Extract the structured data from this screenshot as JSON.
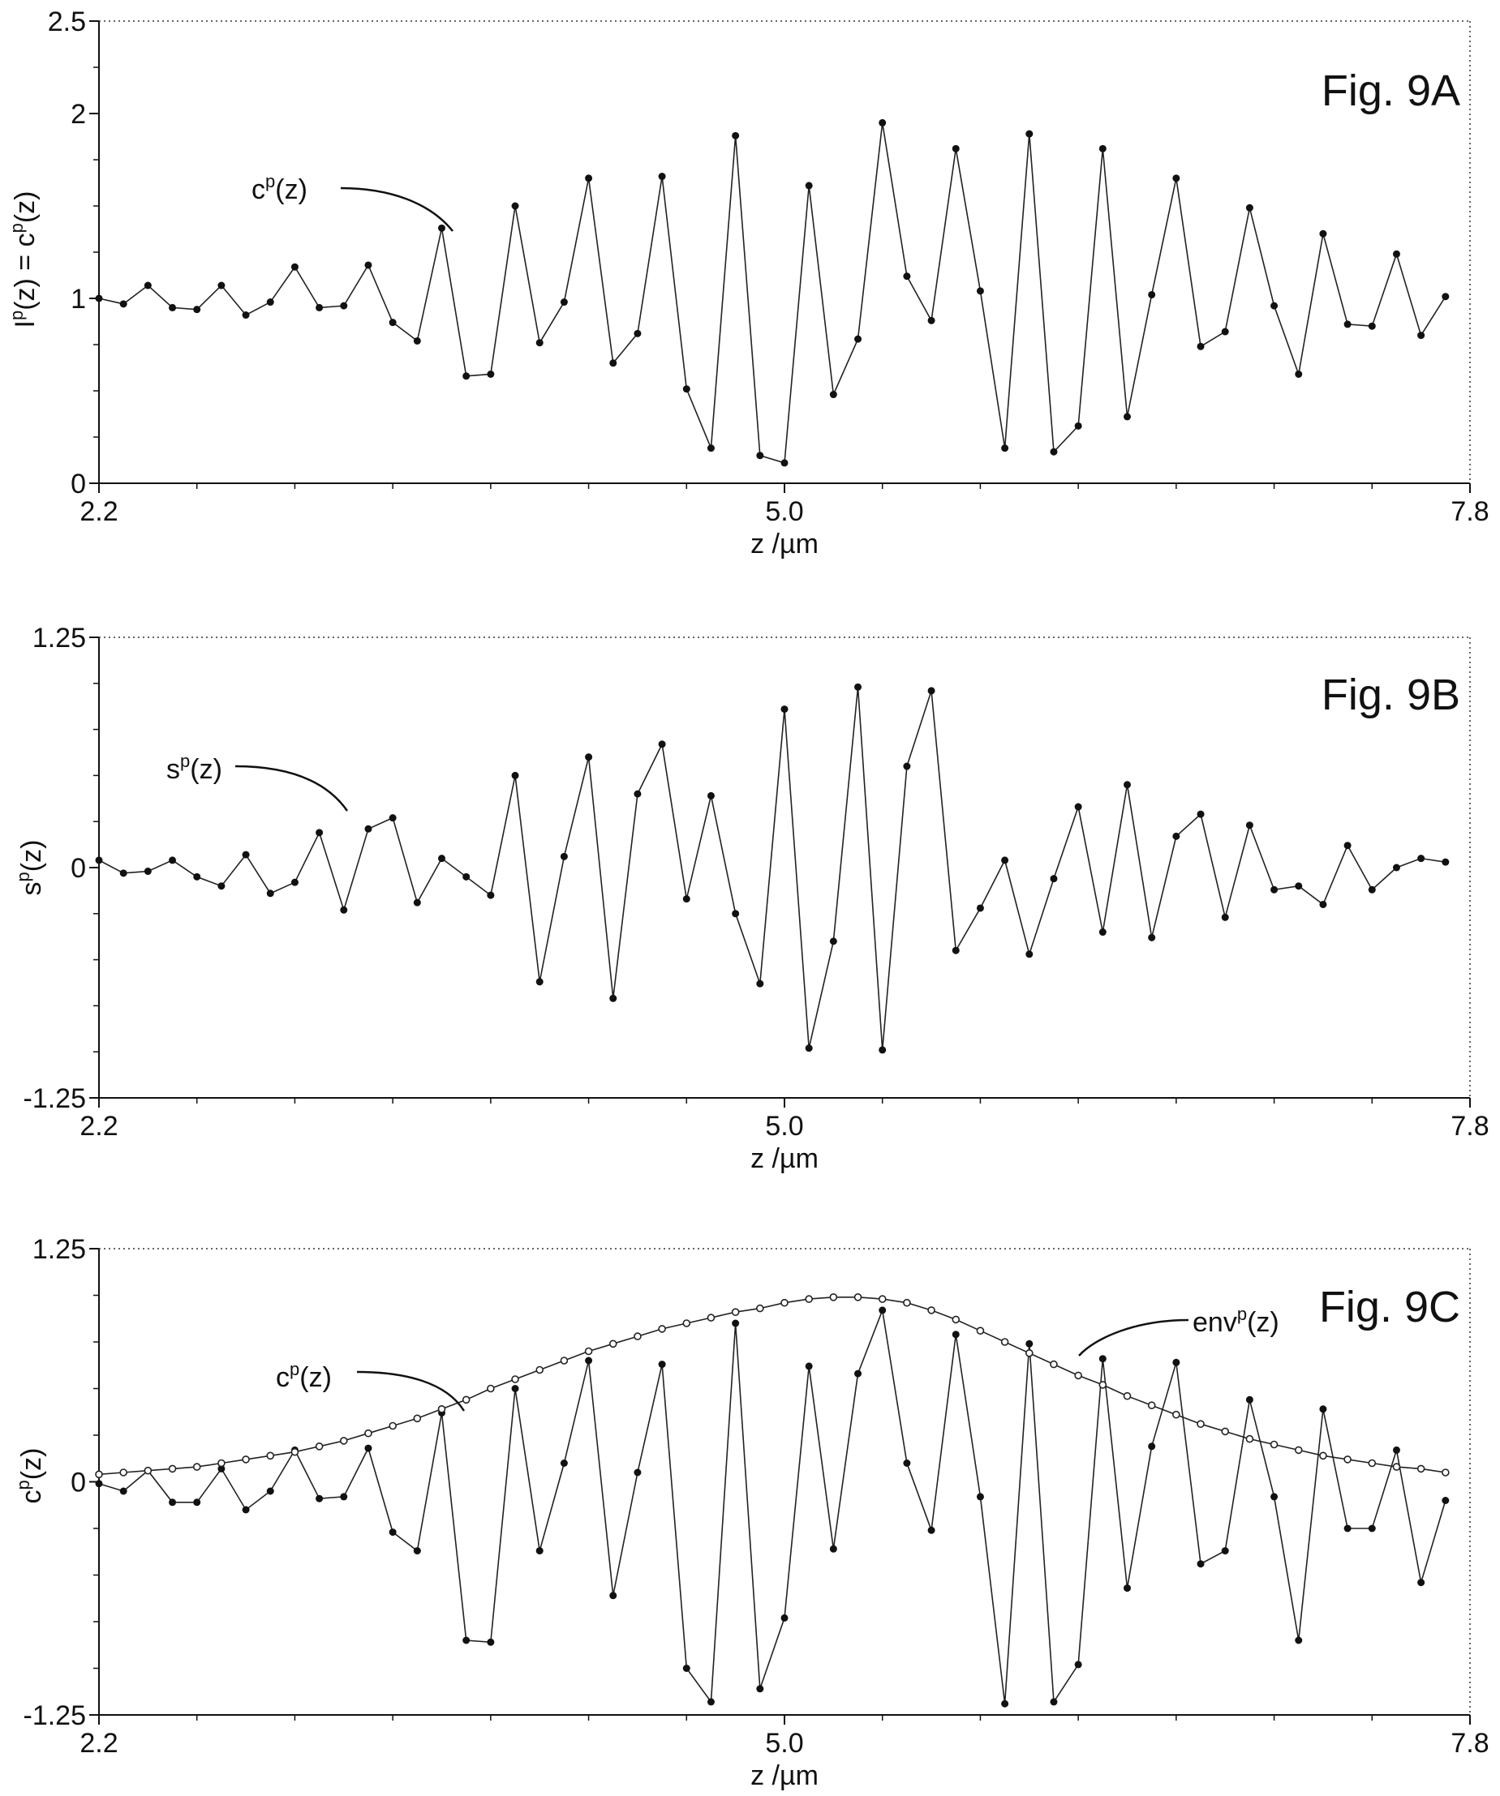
{
  "chart_data": [
    {
      "id": "9A",
      "type": "line",
      "title": "Fig. 9A",
      "xlabel": "z /µm",
      "ylabel_main": "I",
      "ylabel_sup": "p",
      "ylabel_mid": "(z) = c",
      "ylabel_sup2": "p",
      "ylabel_end": "(z)",
      "xlim": [
        2.2,
        7.8
      ],
      "ylim": [
        0,
        2.5
      ],
      "xticks": [
        2.2,
        5.0,
        7.8
      ],
      "xtick_labels": [
        "2.2",
        "5.0",
        "7.8"
      ],
      "yticks": [
        0,
        1,
        2,
        2.5
      ],
      "ytick_labels": [
        "0",
        "1",
        "2",
        "2.5"
      ],
      "annotations": [
        {
          "base": "c",
          "sup": "p",
          "rest": "(z)"
        }
      ],
      "series": [
        {
          "marker": "dot",
          "x": [
            2.2,
            2.3,
            2.4,
            2.5,
            2.6,
            2.7,
            2.8,
            2.9,
            3.0,
            3.1,
            3.2,
            3.3,
            3.4,
            3.5,
            3.6,
            3.7,
            3.8,
            3.9,
            4.0,
            4.1,
            4.2,
            4.3,
            4.4,
            4.5,
            4.6,
            4.7,
            4.8,
            4.9,
            5.0,
            5.1,
            5.2,
            5.3,
            5.4,
            5.5,
            5.6,
            5.7,
            5.8,
            5.9,
            6.0,
            6.1,
            6.2,
            6.3,
            6.4,
            6.5,
            6.6,
            6.7,
            6.8,
            6.9,
            7.0,
            7.1,
            7.2,
            7.3,
            7.4,
            7.5,
            7.6,
            7.7
          ],
          "y": [
            1.0,
            0.97,
            1.07,
            0.95,
            0.94,
            1.07,
            0.91,
            0.98,
            1.17,
            0.95,
            0.96,
            1.18,
            0.87,
            0.77,
            1.38,
            0.58,
            0.59,
            1.5,
            0.76,
            0.98,
            1.65,
            0.65,
            0.81,
            1.66,
            0.51,
            0.19,
            1.88,
            0.15,
            0.11,
            1.61,
            0.48,
            0.78,
            1.95,
            1.12,
            0.88,
            1.81,
            1.04,
            0.19,
            1.89,
            0.17,
            0.31,
            1.81,
            0.36,
            1.02,
            1.65,
            0.74,
            0.82,
            1.49,
            0.96,
            0.59,
            1.35,
            0.86,
            0.85,
            1.24,
            0.8,
            1.01
          ]
        }
      ]
    },
    {
      "id": "9B",
      "type": "line",
      "title": "Fig. 9B",
      "xlabel": "z /µm",
      "ylabel_main": "s",
      "ylabel_sup": "p",
      "ylabel_end": "(z)",
      "xlim": [
        2.2,
        7.8
      ],
      "ylim": [
        -1.25,
        1.25
      ],
      "xticks": [
        2.2,
        5.0,
        7.8
      ],
      "xtick_labels": [
        "2.2",
        "5.0",
        "7.8"
      ],
      "yticks": [
        -1.25,
        0,
        1.25
      ],
      "ytick_labels": [
        "-1.25",
        "0",
        "1.25"
      ],
      "annotations": [
        {
          "base": "s",
          "sup": "p",
          "rest": "(z)"
        }
      ],
      "series": [
        {
          "marker": "dot",
          "x": [
            2.2,
            2.3,
            2.4,
            2.5,
            2.6,
            2.7,
            2.8,
            2.9,
            3.0,
            3.1,
            3.2,
            3.3,
            3.4,
            3.5,
            3.6,
            3.7,
            3.8,
            3.9,
            4.0,
            4.1,
            4.2,
            4.3,
            4.4,
            4.5,
            4.6,
            4.7,
            4.8,
            4.9,
            5.0,
            5.1,
            5.2,
            5.3,
            5.4,
            5.5,
            5.6,
            5.7,
            5.8,
            5.9,
            6.0,
            6.1,
            6.2,
            6.3,
            6.4,
            6.5,
            6.6,
            6.7,
            6.8,
            6.9,
            7.0,
            7.1,
            7.2,
            7.3,
            7.4,
            7.5,
            7.6,
            7.7
          ],
          "y": [
            0.04,
            -0.03,
            -0.02,
            0.04,
            -0.05,
            -0.1,
            0.07,
            -0.14,
            -0.08,
            0.19,
            -0.23,
            0.21,
            0.27,
            -0.19,
            0.05,
            -0.05,
            -0.15,
            0.5,
            -0.62,
            0.06,
            0.6,
            -0.71,
            0.4,
            0.67,
            -0.17,
            0.39,
            -0.25,
            -0.63,
            0.86,
            -0.98,
            -0.4,
            0.98,
            -0.99,
            0.55,
            0.96,
            -0.45,
            -0.22,
            0.04,
            -0.47,
            -0.06,
            0.33,
            -0.35,
            0.45,
            -0.38,
            0.17,
            0.29,
            -0.27,
            0.23,
            -0.12,
            -0.1,
            -0.2,
            0.12,
            -0.12,
            0.0,
            0.05,
            0.03
          ]
        }
      ]
    },
    {
      "id": "9C",
      "type": "line",
      "title": "Fig. 9C",
      "xlabel": "z /µm",
      "ylabel_main": "c",
      "ylabel_sup": "p",
      "ylabel_end": "(z)",
      "xlim": [
        2.2,
        7.8
      ],
      "ylim": [
        -1.25,
        1.25
      ],
      "xticks": [
        2.2,
        5.0,
        7.8
      ],
      "xtick_labels": [
        "2.2",
        "5.0",
        "7.8"
      ],
      "yticks": [
        -1.25,
        0,
        1.25
      ],
      "ytick_labels": [
        "-1.25",
        "0",
        "1.25"
      ],
      "annotations": [
        {
          "base": "c",
          "sup": "p",
          "rest": "(z)"
        },
        {
          "base": "env",
          "sup": "p",
          "rest": "(z)"
        }
      ],
      "series": [
        {
          "marker": "dot",
          "x": [
            2.2,
            2.3,
            2.4,
            2.5,
            2.6,
            2.7,
            2.8,
            2.9,
            3.0,
            3.1,
            3.2,
            3.3,
            3.4,
            3.5,
            3.6,
            3.7,
            3.8,
            3.9,
            4.0,
            4.1,
            4.2,
            4.3,
            4.4,
            4.5,
            4.6,
            4.7,
            4.8,
            4.9,
            5.0,
            5.1,
            5.2,
            5.3,
            5.4,
            5.5,
            5.6,
            5.7,
            5.8,
            5.9,
            6.0,
            6.1,
            6.2,
            6.3,
            6.4,
            6.5,
            6.6,
            6.7,
            6.8,
            6.9,
            7.0,
            7.1,
            7.2,
            7.3,
            7.4,
            7.5,
            7.6,
            7.7
          ],
          "y": [
            -0.01,
            -0.05,
            0.06,
            -0.11,
            -0.11,
            0.07,
            -0.15,
            -0.05,
            0.17,
            -0.09,
            -0.08,
            0.18,
            -0.27,
            -0.37,
            0.37,
            -0.85,
            -0.86,
            0.5,
            -0.37,
            0.1,
            0.65,
            -0.61,
            0.05,
            0.63,
            -1.0,
            -1.18,
            0.85,
            -1.11,
            -0.73,
            0.62,
            -0.36,
            0.58,
            0.92,
            0.1,
            -0.26,
            0.79,
            -0.08,
            -1.19,
            0.74,
            -1.18,
            -0.98,
            0.66,
            -0.57,
            0.19,
            0.64,
            -0.44,
            -0.37,
            0.44,
            -0.08,
            -0.85,
            0.39,
            -0.25,
            -0.25,
            0.17,
            -0.54,
            -0.1
          ]
        },
        {
          "marker": "open-diamond",
          "x": [
            2.2,
            2.3,
            2.4,
            2.5,
            2.6,
            2.7,
            2.8,
            2.9,
            3.0,
            3.1,
            3.2,
            3.3,
            3.4,
            3.5,
            3.6,
            3.7,
            3.8,
            3.9,
            4.0,
            4.1,
            4.2,
            4.3,
            4.4,
            4.5,
            4.6,
            4.7,
            4.8,
            4.9,
            5.0,
            5.1,
            5.2,
            5.3,
            5.4,
            5.5,
            5.6,
            5.7,
            5.8,
            5.9,
            6.0,
            6.1,
            6.2,
            6.3,
            6.4,
            6.5,
            6.6,
            6.7,
            6.8,
            6.9,
            7.0,
            7.1,
            7.2,
            7.3,
            7.4,
            7.5,
            7.6,
            7.7
          ],
          "y": [
            0.04,
            0.05,
            0.06,
            0.07,
            0.08,
            0.1,
            0.12,
            0.14,
            0.16,
            0.19,
            0.22,
            0.26,
            0.3,
            0.34,
            0.39,
            0.44,
            0.5,
            0.55,
            0.6,
            0.65,
            0.7,
            0.74,
            0.78,
            0.82,
            0.85,
            0.88,
            0.91,
            0.93,
            0.96,
            0.98,
            0.99,
            0.99,
            0.98,
            0.96,
            0.92,
            0.87,
            0.81,
            0.75,
            0.69,
            0.63,
            0.57,
            0.52,
            0.46,
            0.41,
            0.36,
            0.31,
            0.27,
            0.23,
            0.2,
            0.17,
            0.14,
            0.12,
            0.1,
            0.08,
            0.07,
            0.05
          ]
        }
      ]
    }
  ]
}
